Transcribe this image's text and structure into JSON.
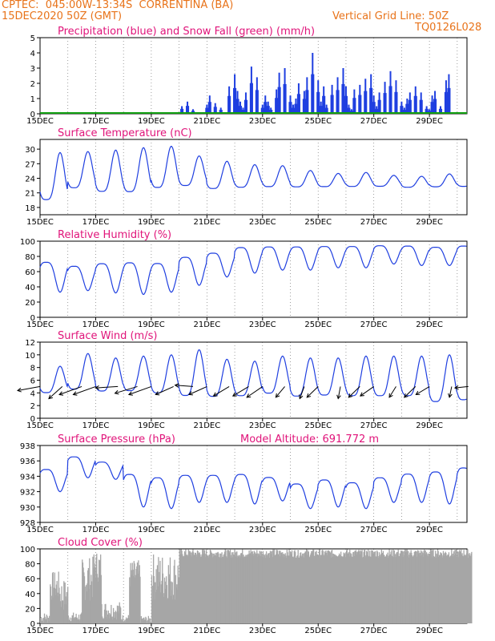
{
  "header": {
    "line1_left": "CPTEC:  045:00W-13:34S  CORRENTINA (BA)",
    "line2_left": "15DEC2020 50Z (GMT)",
    "line1_right": "Vertical Grid Line: 50Z",
    "line2_right": "TQ0126L028"
  },
  "colors": {
    "blue": "#1f3fe0",
    "green": "#11a011",
    "gray": "#a6a6a6",
    "title": "#e0147a",
    "header": "#e8731a"
  },
  "x_ticks": [
    "15DEC",
    "17DEC",
    "19DEC",
    "21DEC",
    "23DEC",
    "25DEC",
    "27DEC",
    "29DEC"
  ],
  "chart_data": [
    {
      "type": "bar",
      "title": "Precipitation (blue) and Snow Fall (green) (mm/h)",
      "ylim": [
        0,
        5
      ],
      "yticks": [
        0,
        1,
        2,
        3,
        4,
        5
      ],
      "x_unit": "days since 15DEC 00Z",
      "series": [
        {
          "name": "Precipitation",
          "x": [
            5.1,
            5.3,
            5.5,
            6.0,
            6.1,
            6.3,
            6.5,
            6.8,
            7.0,
            7.1,
            7.2,
            7.3,
            7.4,
            7.6,
            7.8,
            8.0,
            8.1,
            8.2,
            8.3,
            8.5,
            8.6,
            8.8,
            9.0,
            9.1,
            9.2,
            9.3,
            9.5,
            9.6,
            9.8,
            10.0,
            10.1,
            10.2,
            10.3,
            10.5,
            10.7,
            10.9,
            11.0,
            11.1,
            11.2,
            11.3,
            11.5,
            11.7,
            11.9,
            12.0,
            12.1,
            12.2,
            12.4,
            12.6,
            12.8,
            13.0,
            13.1,
            13.2,
            13.3,
            13.5,
            13.7,
            13.9,
            14.0,
            14.1,
            14.2,
            14.4,
            14.6,
            14.7
          ],
          "values": [
            0.5,
            0.8,
            0.3,
            0.6,
            1.2,
            0.7,
            0.4,
            1.8,
            2.6,
            1.5,
            0.8,
            0.4,
            1.4,
            3.1,
            2.4,
            0.6,
            1.2,
            0.8,
            0.4,
            1.6,
            2.7,
            3.0,
            1.2,
            0.6,
            1.0,
            2.0,
            1.5,
            2.4,
            4.0,
            2.2,
            0.8,
            1.8,
            0.6,
            1.9,
            2.4,
            3.0,
            1.8,
            0.6,
            0.3,
            1.6,
            1.9,
            2.3,
            2.6,
            1.2,
            0.5,
            1.4,
            2.1,
            2.8,
            2.2,
            0.8,
            0.4,
            1.0,
            1.4,
            1.8,
            1.4,
            0.5,
            0.3,
            1.2,
            1.5,
            0.5,
            2.2,
            2.6
          ]
        },
        {
          "name": "Snow Fall",
          "values": [
            0
          ]
        }
      ]
    },
    {
      "type": "line",
      "title": "Surface Temperature (nC)",
      "ylim": [
        16.5,
        32
      ],
      "yticks": [
        18,
        21,
        24,
        27,
        30
      ],
      "peaks": [
        29.3,
        29.5,
        29.8,
        30.3,
        30.6,
        28.6,
        27.5,
        26.8,
        26.6,
        25.6,
        25.0,
        25.2,
        24.6,
        24.4,
        24.9,
        25.3
      ],
      "troughs": [
        17.2,
        20.2,
        19.2,
        19.0,
        20.0,
        21.0,
        20.5,
        21.0,
        21.2,
        21.4,
        21.6,
        21.6,
        21.8,
        21.6,
        21.6,
        21.6
      ]
    },
    {
      "type": "line",
      "title": "Relative Humidity (%)",
      "ylim": [
        0,
        100
      ],
      "yticks": [
        0,
        20,
        40,
        60,
        80,
        100
      ],
      "peaks": [
        82,
        75,
        80,
        82,
        80,
        88,
        92,
        100,
        100,
        100,
        100,
        100,
        100,
        100,
        98,
        100
      ],
      "troughs": [
        33,
        35,
        32,
        30,
        33,
        42,
        53,
        58,
        62,
        62,
        65,
        65,
        70,
        68,
        68,
        68
      ]
    },
    {
      "type": "line",
      "title": "Surface Wind (m/s)",
      "ylim": [
        0,
        12
      ],
      "yticks": [
        0,
        2,
        4,
        6,
        8,
        10,
        12
      ],
      "peaks": [
        8.2,
        10.2,
        9.5,
        9.8,
        10.0,
        10.8,
        9.3,
        9.0,
        9.8,
        9.5,
        9.5,
        9.8,
        9.8,
        9.8,
        10.0,
        9.8
      ],
      "troughs": [
        3.0,
        3.2,
        3.0,
        3.0,
        2.5,
        1.8,
        2.0,
        2.2,
        2.5,
        2.0,
        2.2,
        2.0,
        2.0,
        2.0,
        0.8,
        1.2
      ],
      "arrows": [
        {
          "day": 0.0,
          "u": -1.0,
          "v": -0.3
        },
        {
          "day": 0.8,
          "u": -0.6,
          "v": -0.9
        },
        {
          "day": 1.5,
          "u": -1.0,
          "v": -0.6
        },
        {
          "day": 2.0,
          "u": -1.0,
          "v": -0.6
        },
        {
          "day": 2.8,
          "u": -1.0,
          "v": -0.1
        },
        {
          "day": 3.5,
          "u": -1.0,
          "v": -0.5
        },
        {
          "day": 4.0,
          "u": -1.0,
          "v": -0.6
        },
        {
          "day": 4.8,
          "u": -0.8,
          "v": -0.6
        },
        {
          "day": 5.5,
          "u": -0.8,
          "v": 0.1
        },
        {
          "day": 6.0,
          "u": -0.8,
          "v": -0.6
        },
        {
          "day": 6.8,
          "u": -0.7,
          "v": -0.7
        },
        {
          "day": 7.5,
          "u": -0.7,
          "v": -0.7
        },
        {
          "day": 8.0,
          "u": -0.7,
          "v": -0.8
        },
        {
          "day": 8.8,
          "u": -0.4,
          "v": -0.8
        },
        {
          "day": 9.5,
          "u": -0.2,
          "v": -0.9
        },
        {
          "day": 10.0,
          "u": -0.5,
          "v": -0.8
        },
        {
          "day": 10.8,
          "u": -0.1,
          "v": -0.9
        },
        {
          "day": 11.5,
          "u": -0.5,
          "v": -0.8
        },
        {
          "day": 12.0,
          "u": -0.6,
          "v": -0.7
        },
        {
          "day": 12.8,
          "u": -0.3,
          "v": -0.8
        },
        {
          "day": 13.5,
          "u": -0.5,
          "v": -0.8
        },
        {
          "day": 14.0,
          "u": -0.6,
          "v": -0.6
        },
        {
          "day": 14.8,
          "u": -0.1,
          "v": -0.8
        },
        {
          "day": 15.4,
          "u": -0.6,
          "v": -0.1
        }
      ]
    },
    {
      "type": "line",
      "title": "Surface Pressure (hPa)",
      "annotation": "Model Altitude: 691.772 m",
      "ylim": [
        928,
        938
      ],
      "yticks": [
        928,
        930,
        932,
        934,
        936,
        938
      ],
      "peaks": [
        935.6,
        937.2,
        936.4,
        935.3,
        934.8,
        935.0,
        935.0,
        935.2,
        934.6,
        933.8,
        934.4,
        934.0,
        934.6,
        935.2,
        935.6,
        936.2
      ],
      "troughs": [
        932.0,
        933.8,
        933.6,
        930.0,
        929.8,
        930.6,
        930.6,
        930.4,
        930.8,
        929.8,
        930.0,
        929.8,
        930.6,
        930.6,
        930.4,
        930.6
      ]
    },
    {
      "type": "bar",
      "title": "Cloud Cover (%)",
      "ylim": [
        0,
        100
      ],
      "yticks": [
        0,
        20,
        40,
        60,
        80,
        100
      ],
      "segments": [
        {
          "from": 0.0,
          "to": 0.35,
          "min": 0,
          "max": 15
        },
        {
          "from": 0.35,
          "to": 0.7,
          "min": 30,
          "max": 70
        },
        {
          "from": 0.7,
          "to": 1.0,
          "min": 15,
          "max": 60
        },
        {
          "from": 1.0,
          "to": 1.5,
          "min": 2,
          "max": 15
        },
        {
          "from": 1.5,
          "to": 1.9,
          "min": 30,
          "max": 90
        },
        {
          "from": 1.9,
          "to": 2.2,
          "min": 55,
          "max": 98
        },
        {
          "from": 2.2,
          "to": 2.9,
          "min": 5,
          "max": 30
        },
        {
          "from": 2.9,
          "to": 3.2,
          "min": 2,
          "max": 12
        },
        {
          "from": 3.2,
          "to": 3.6,
          "min": 45,
          "max": 85
        },
        {
          "from": 3.6,
          "to": 4.0,
          "min": 0,
          "max": 10
        },
        {
          "from": 4.0,
          "to": 5.0,
          "min": 30,
          "max": 95
        },
        {
          "from": 5.0,
          "to": 15.5,
          "min": 88,
          "max": 100
        }
      ]
    }
  ]
}
